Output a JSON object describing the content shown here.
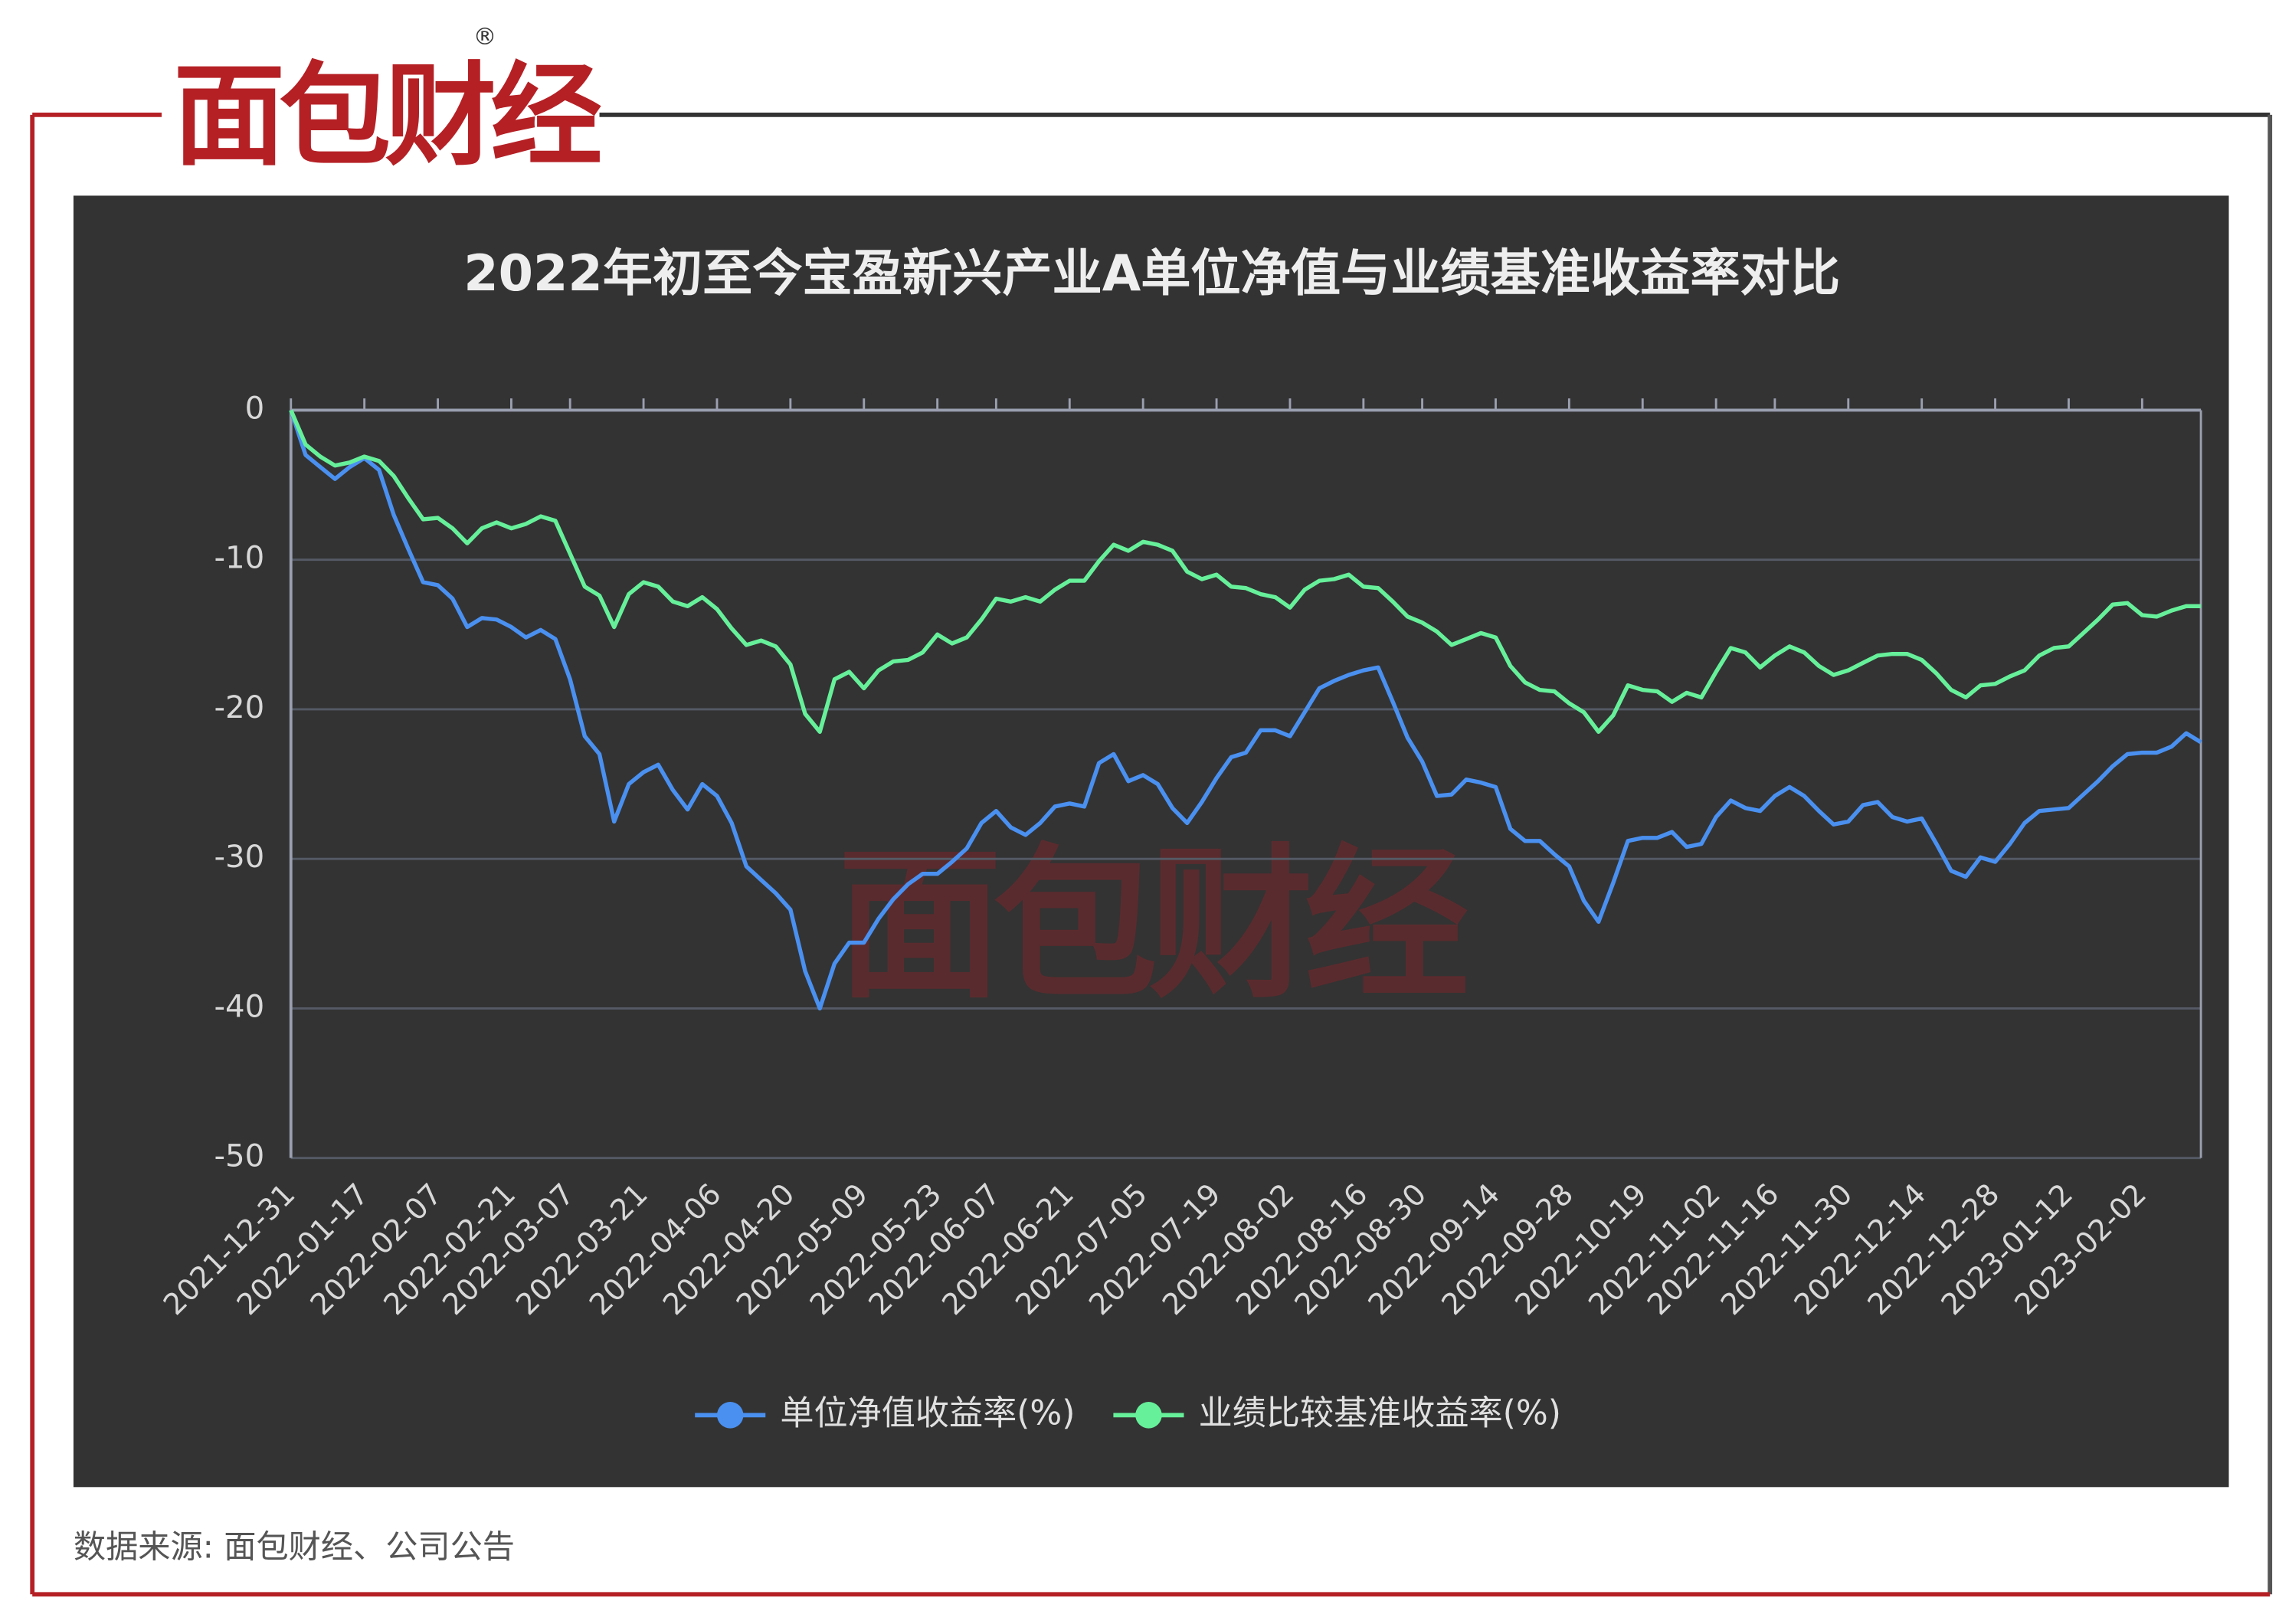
{
  "header": {
    "logo": "面包财经",
    "mark": "®"
  },
  "chart_data": {
    "type": "line",
    "title": "2022年初至今宝盈新兴产业A单位净值与业绩基准收益率对比",
    "watermark": "面包财经",
    "categories": [
      "2021-12-31",
      null,
      null,
      null,
      null,
      "2022-01-17",
      null,
      null,
      null,
      null,
      "2022-02-07",
      null,
      null,
      null,
      null,
      "2022-02-21",
      null,
      null,
      null,
      "2022-03-07",
      null,
      null,
      null,
      null,
      "2022-03-21",
      null,
      null,
      null,
      null,
      "2022-04-06",
      null,
      null,
      null,
      null,
      "2022-04-20",
      null,
      null,
      null,
      null,
      "2022-05-09",
      null,
      null,
      null,
      null,
      "2022-05-23",
      null,
      null,
      null,
      "2022-06-07",
      null,
      null,
      null,
      null,
      "2022-06-21",
      null,
      null,
      null,
      null,
      "2022-07-05",
      null,
      null,
      null,
      null,
      "2022-07-19",
      null,
      null,
      null,
      null,
      "2022-08-02",
      null,
      null,
      null,
      null,
      "2022-08-16",
      null,
      null,
      null,
      "2022-08-30",
      null,
      null,
      null,
      null,
      "2022-09-14",
      null,
      null,
      null,
      null,
      "2022-09-28",
      null,
      null,
      null,
      null,
      "2022-10-19",
      null,
      null,
      null,
      null,
      "2022-11-02",
      null,
      null,
      null,
      "2022-11-16",
      null,
      null,
      null,
      null,
      "2022-11-30",
      null,
      null,
      null,
      null,
      "2022-12-14",
      null,
      null,
      null,
      null,
      "2022-12-28",
      null,
      null,
      null,
      null,
      "2023-01-12",
      null,
      null,
      null,
      null,
      "2023-02-02",
      null,
      null,
      null,
      null
    ],
    "series": [
      {
        "name": "单位净值收益率(%)",
        "color": "#4a90f0",
        "values": [
          0,
          -3,
          -3.8,
          -4.6,
          -3.8,
          -3.2,
          -4,
          -7,
          -9.3,
          -11.5,
          -11.7,
          -12.6,
          -14.5,
          -13.9,
          -14,
          -14.5,
          -15.2,
          -14.7,
          -15.3,
          -18,
          -21.8,
          -23,
          -27.5,
          -25,
          -24.2,
          -23.7,
          -25.4,
          -26.7,
          -25,
          -25.8,
          -27.6,
          -30.5,
          -31.4,
          -32.3,
          -33.4,
          -37.5,
          -40,
          -37,
          -35.6,
          -35.6,
          -34,
          -32.7,
          -31.7,
          -31,
          -31,
          -30.2,
          -29.3,
          -27.6,
          -26.8,
          -27.9,
          -28.4,
          -27.6,
          -26.5,
          -26.3,
          -26.5,
          -23.6,
          -23,
          -24.8,
          -24.4,
          -25,
          -26.6,
          -27.6,
          -26.2,
          -24.6,
          -23.2,
          -22.9,
          -21.4,
          -21.4,
          -21.8,
          -20.2,
          -18.6,
          -18.1,
          -17.7,
          -17.4,
          -17.2,
          -19.5,
          -21.9,
          -23.5,
          -25.8,
          -25.7,
          -24.7,
          -24.9,
          -25.2,
          -28,
          -28.8,
          -28.8,
          -29.7,
          -30.5,
          -32.8,
          -34.2,
          -31.6,
          -28.8,
          -28.6,
          -28.6,
          -28.2,
          -29.2,
          -29,
          -27.2,
          -26.1,
          -26.6,
          -26.8,
          -25.8,
          -25.2,
          -25.8,
          -26.8,
          -27.7,
          -27.5,
          -26.4,
          -26.2,
          -27.2,
          -27.5,
          -27.3,
          -29,
          -30.8,
          -31.2,
          -29.9,
          -30.2,
          -29,
          -27.6,
          -26.8,
          -26.7,
          -26.6,
          -25.7,
          -24.8,
          -23.8,
          -23,
          -22.9,
          -22.9,
          -22.5,
          -21.6,
          -22.2
        ]
      },
      {
        "name": "业绩比较基准收益率(%)",
        "color": "#66f09a",
        "values": [
          0,
          -2.3,
          -3.1,
          -3.7,
          -3.5,
          -3.1,
          -3.4,
          -4.4,
          -5.9,
          -7.3,
          -7.2,
          -7.9,
          -8.9,
          -7.9,
          -7.5,
          -7.9,
          -7.6,
          -7.1,
          -7.4,
          -9.6,
          -11.8,
          -12.4,
          -14.5,
          -12.3,
          -11.5,
          -11.8,
          -12.8,
          -13.1,
          -12.5,
          -13.3,
          -14.6,
          -15.7,
          -15.4,
          -15.8,
          -17,
          -20.3,
          -21.5,
          -18,
          -17.5,
          -18.6,
          -17.4,
          -16.8,
          -16.7,
          -16.2,
          -15,
          -15.6,
          -15.2,
          -14,
          -12.6,
          -12.8,
          -12.5,
          -12.8,
          -12,
          -11.4,
          -11.4,
          -10.1,
          -9,
          -9.4,
          -8.8,
          -9,
          -9.4,
          -10.8,
          -11.3,
          -11,
          -11.8,
          -11.9,
          -12.3,
          -12.5,
          -13.2,
          -12,
          -11.4,
          -11.3,
          -11,
          -11.8,
          -11.9,
          -12.8,
          -13.8,
          -14.2,
          -14.8,
          -15.7,
          -15.3,
          -14.9,
          -15.2,
          -17.1,
          -18.2,
          -18.7,
          -18.8,
          -19.6,
          -20.2,
          -21.5,
          -20.4,
          -18.4,
          -18.7,
          -18.8,
          -19.5,
          -18.9,
          -19.2,
          -17.5,
          -15.9,
          -16.2,
          -17.2,
          -16.4,
          -15.8,
          -16.2,
          -17.1,
          -17.7,
          -17.4,
          -16.9,
          -16.4,
          -16.3,
          -16.3,
          -16.7,
          -17.6,
          -18.7,
          -19.2,
          -18.4,
          -18.3,
          -17.8,
          -17.4,
          -16.4,
          -15.9,
          -15.8,
          -14.9,
          -14,
          -13,
          -12.9,
          -13.7,
          -13.8,
          -13.4,
          -13.1,
          -13.1
        ]
      }
    ],
    "ylim": [
      -50,
      0
    ],
    "yticks": [
      0,
      -10,
      -20,
      -30,
      -40,
      -50
    ],
    "grid": true,
    "legend": "bottom"
  },
  "footer": {
    "source": "数据来源: 面包财经、公司公告"
  }
}
